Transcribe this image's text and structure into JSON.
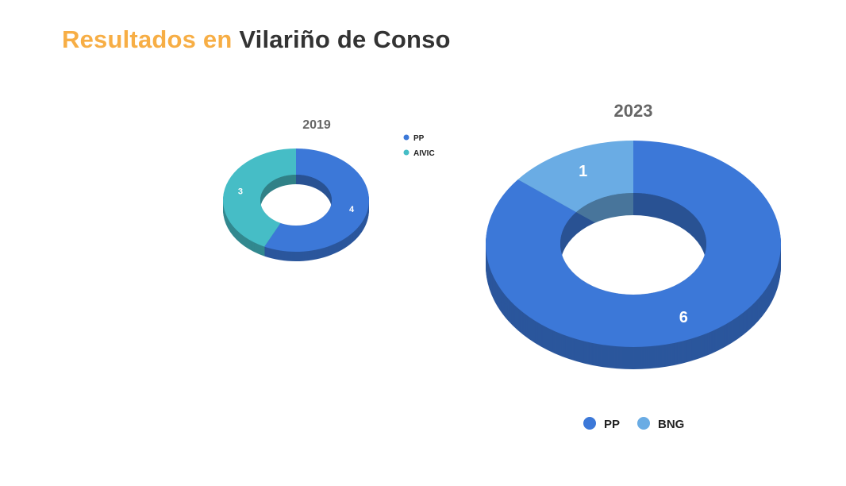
{
  "title": {
    "prefix": "Resultados en",
    "place": "Vilariño de Conso"
  },
  "chart_data": [
    {
      "type": "pie",
      "variant": "3d-donut",
      "title": "2019",
      "categories": [
        "PP",
        "AIVIC"
      ],
      "values": [
        4,
        3
      ],
      "colors": [
        "#3c78d8",
        "#46bdc6"
      ],
      "legend": "right"
    },
    {
      "type": "pie",
      "variant": "3d-donut",
      "title": "2023",
      "categories": [
        "PP",
        "BNG"
      ],
      "values": [
        6,
        1
      ],
      "colors": [
        "#3c78d8",
        "#6aace4"
      ],
      "legend": "bottom"
    }
  ]
}
